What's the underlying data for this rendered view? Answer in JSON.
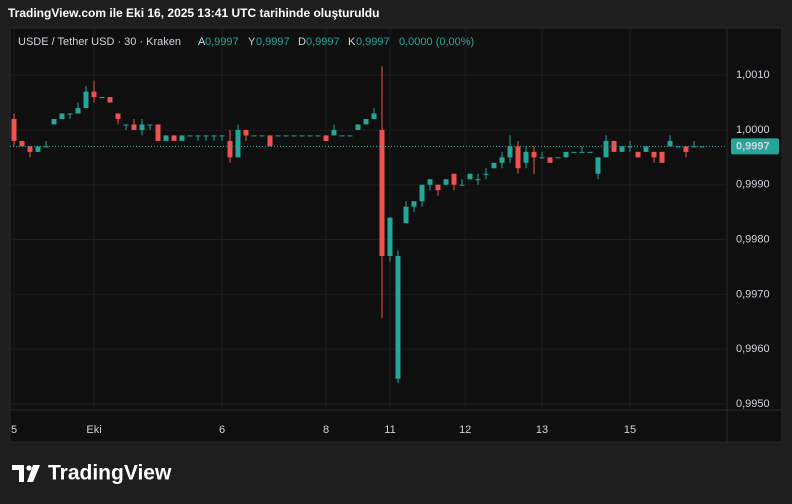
{
  "header": {
    "title": "TradingView.com ile Eki 16, 2025 13:41 UTC tarihinde oluşturuldu"
  },
  "legend": {
    "symbol": "USDE / Tether USD · 30 · Kraken",
    "fields": [
      {
        "key": "A",
        "value": "0,9997"
      },
      {
        "key": "Y",
        "value": "0,9997"
      },
      {
        "key": "D",
        "value": "0,9997"
      },
      {
        "key": "K",
        "value": "0,9997"
      }
    ],
    "change": "0,0000 (0,00%)"
  },
  "footer": {
    "logo": "TradingView"
  },
  "chart_data": {
    "type": "candlestick",
    "up_color": "#26a69a",
    "down_color": "#ef5350",
    "ylim": [
      0.99489,
      1.00186
    ],
    "yticks": [
      {
        "value": 1.001,
        "label": "1,0010"
      },
      {
        "value": 1.0,
        "label": "1,0000"
      },
      {
        "value": 0.999,
        "label": "0,9990"
      },
      {
        "value": 0.998,
        "label": "0,9980"
      },
      {
        "value": 0.997,
        "label": "0,9970"
      },
      {
        "value": 0.996,
        "label": "0,9960"
      },
      {
        "value": 0.995,
        "label": "0,9950"
      }
    ],
    "xticks": [
      {
        "value": 0,
        "label": "5"
      },
      {
        "value": 10,
        "label": "Eki"
      },
      {
        "value": 26,
        "label": "6"
      },
      {
        "value": 39,
        "label": "8"
      },
      {
        "value": 47,
        "label": "11"
      },
      {
        "value": 56.4,
        "label": "12"
      },
      {
        "value": 66,
        "label": "13"
      },
      {
        "value": 77,
        "label": "15"
      }
    ],
    "last_price": {
      "value": 0.9997,
      "label": "0,9997"
    },
    "ohlc": [
      [
        1.0002,
        1.0003,
        0.9997,
        0.9998
      ],
      [
        0.9998,
        0.9998,
        0.9997,
        0.9997
      ],
      [
        0.9997,
        0.9997,
        0.9995,
        0.9996
      ],
      [
        0.9996,
        0.9997,
        0.9996,
        0.9997
      ],
      [
        0.9997,
        0.9998,
        0.9997,
        0.9997
      ],
      [
        1.0001,
        1.0002,
        1.0001,
        1.0002
      ],
      [
        1.0002,
        1.0003,
        1.0002,
        1.0003
      ],
      [
        1.0003,
        1.0003,
        1.0002,
        1.0003
      ],
      [
        1.0003,
        1.0005,
        1.0003,
        1.0004
      ],
      [
        1.0004,
        1.0008,
        1.0004,
        1.0007
      ],
      [
        1.0007,
        1.0009,
        1.0005,
        1.0006
      ],
      [
        1.0006,
        1.0006,
        1.0006,
        1.0006
      ],
      [
        1.0006,
        1.0006,
        1.0005,
        1.0005
      ],
      [
        1.0003,
        1.0003,
        1.0001,
        1.0002
      ],
      [
        1.0001,
        1.0001,
        1.0,
        1.0001
      ],
      [
        1.0001,
        1.0002,
        1.0,
        1.0
      ],
      [
        1.0,
        1.0002,
        0.9999,
        1.0001
      ],
      [
        1.0001,
        1.0001,
        1.0,
        1.0001
      ],
      [
        1.0001,
        1.0001,
        0.9998,
        0.9998
      ],
      [
        0.9998,
        0.9999,
        0.9998,
        0.9999
      ],
      [
        0.9999,
        0.9999,
        0.9998,
        0.9998
      ],
      [
        0.9998,
        0.9999,
        0.9998,
        0.9999
      ],
      [
        0.9999,
        0.9999,
        0.9999,
        0.9999
      ],
      [
        0.9999,
        0.9999,
        0.9998,
        0.9999
      ],
      [
        0.9999,
        0.9999,
        0.9998,
        0.9999
      ],
      [
        0.9999,
        0.9999,
        0.9998,
        0.9999
      ],
      [
        0.9999,
        0.9999,
        0.9998,
        0.9999
      ],
      [
        0.9998,
        1.0,
        0.9994,
        0.9995
      ],
      [
        0.9995,
        1.0001,
        0.9995,
        1.0
      ],
      [
        1.0,
        1.0,
        0.9998,
        0.9999
      ],
      [
        0.9999,
        0.9999,
        0.9999,
        0.9999
      ],
      [
        0.9999,
        0.9999,
        0.9999,
        0.9999
      ],
      [
        0.9999,
        0.9999,
        0.9997,
        0.9997
      ],
      [
        0.9999,
        0.9999,
        0.9999,
        0.9999
      ],
      [
        0.9999,
        0.9999,
        0.9999,
        0.9999
      ],
      [
        0.9999,
        0.9999,
        0.9999,
        0.9999
      ],
      [
        0.9999,
        0.9999,
        0.9999,
        0.9999
      ],
      [
        0.9999,
        0.9999,
        0.9999,
        0.9999
      ],
      [
        0.9999,
        0.9999,
        0.9999,
        0.9999
      ],
      [
        0.9999,
        0.9999,
        0.9998,
        0.9998
      ],
      [
        0.9999,
        1.0001,
        0.9999,
        1.0
      ],
      [
        0.9999,
        0.9999,
        0.9999,
        0.9999
      ],
      [
        0.9999,
        0.9999,
        0.9999,
        0.9999
      ],
      [
        1.0,
        1.0001,
        1.0,
        1.0001
      ],
      [
        1.0001,
        1.0002,
        1.0001,
        1.0002
      ],
      [
        1.0002,
        1.0004,
        1.0002,
        1.0003
      ],
      [
        1.0,
        1.00116,
        0.99657,
        0.9977
      ],
      [
        0.9977,
        0.9984,
        0.9976,
        0.9984
      ],
      [
        0.99546,
        0.9978,
        0.99538,
        0.9977
      ],
      [
        0.9983,
        0.9987,
        0.9983,
        0.9986
      ],
      [
        0.9986,
        0.9987,
        0.9985,
        0.9987
      ],
      [
        0.9987,
        0.999,
        0.9986,
        0.999
      ],
      [
        0.999,
        0.9991,
        0.9989,
        0.9991
      ],
      [
        0.999,
        0.999,
        0.9988,
        0.9989
      ],
      [
        0.999,
        0.9991,
        0.999,
        0.9991
      ],
      [
        0.9992,
        0.9992,
        0.9989,
        0.999
      ],
      [
        0.999,
        0.9991,
        0.999,
        0.999
      ],
      [
        0.9991,
        0.9992,
        0.9991,
        0.9992
      ],
      [
        0.9991,
        0.9992,
        0.999,
        0.9991
      ],
      [
        0.9992,
        0.9993,
        0.9991,
        0.9992
      ],
      [
        0.9993,
        0.9994,
        0.9993,
        0.9994
      ],
      [
        0.9994,
        0.9996,
        0.9993,
        0.9995
      ],
      [
        0.9995,
        0.9999,
        0.9994,
        0.9997
      ],
      [
        0.9997,
        0.9998,
        0.9992,
        0.9993
      ],
      [
        0.9994,
        0.9997,
        0.9993,
        0.9996
      ],
      [
        0.9996,
        0.9997,
        0.9992,
        0.9995
      ],
      [
        0.9995,
        0.9996,
        0.9995,
        0.9995
      ],
      [
        0.9995,
        0.9995,
        0.9994,
        0.9994
      ],
      [
        0.9995,
        0.9995,
        0.9995,
        0.9995
      ],
      [
        0.9995,
        0.9996,
        0.9995,
        0.9996
      ],
      [
        0.9996,
        0.9996,
        0.9996,
        0.9996
      ],
      [
        0.9996,
        0.9997,
        0.9996,
        0.9996
      ],
      [
        0.9996,
        0.9996,
        0.9996,
        0.9996
      ],
      [
        0.9992,
        0.9995,
        0.9991,
        0.9995
      ],
      [
        0.9995,
        0.9999,
        0.9995,
        0.9998
      ],
      [
        0.9998,
        0.9998,
        0.9996,
        0.9996
      ],
      [
        0.9996,
        0.9997,
        0.9996,
        0.9997
      ],
      [
        0.9997,
        0.9998,
        0.9996,
        0.9997
      ],
      [
        0.9996,
        0.9996,
        0.9995,
        0.9995
      ],
      [
        0.9996,
        0.9997,
        0.9996,
        0.9997
      ],
      [
        0.9996,
        0.9996,
        0.9994,
        0.9995
      ],
      [
        0.9996,
        0.9996,
        0.9994,
        0.9994
      ],
      [
        0.9997,
        0.9999,
        0.9997,
        0.9998
      ],
      [
        0.9997,
        0.9997,
        0.9997,
        0.9997
      ],
      [
        0.9997,
        0.9997,
        0.9995,
        0.9996
      ],
      [
        0.9997,
        0.9998,
        0.9997,
        0.9997
      ],
      [
        0.9997,
        0.9997,
        0.9997,
        0.9997
      ]
    ]
  }
}
